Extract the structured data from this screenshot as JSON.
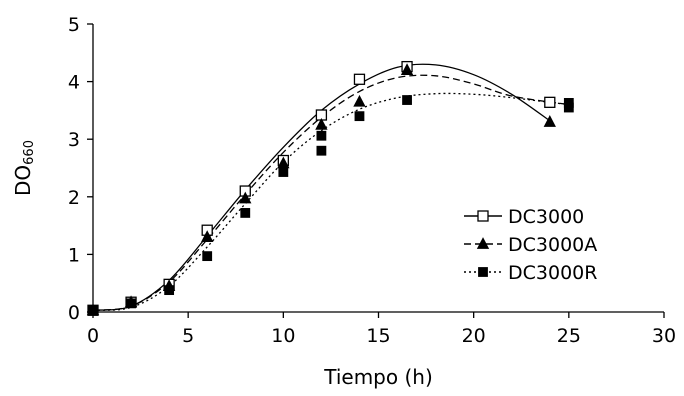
{
  "chart_data": {
    "type": "scatter",
    "xlabel": "Tiempo (h)",
    "ylabel": {
      "main": "DO",
      "sub": "660"
    },
    "xlim": [
      0,
      30
    ],
    "ylim": [
      0,
      5
    ],
    "xticks": [
      0,
      5,
      10,
      15,
      20,
      25,
      30
    ],
    "yticks": [
      0,
      1,
      2,
      3,
      4,
      5
    ],
    "grid": false,
    "legend_position": "center-right",
    "series": [
      {
        "name": "DC3000",
        "marker": "open-square",
        "line": "solid",
        "color": "#000000",
        "points": [
          {
            "x": 0,
            "y": 0.03
          },
          {
            "x": 2,
            "y": 0.17
          },
          {
            "x": 4,
            "y": 0.48
          },
          {
            "x": 6,
            "y": 1.42
          },
          {
            "x": 8,
            "y": 2.1
          },
          {
            "x": 10,
            "y": 2.63
          },
          {
            "x": 12,
            "y": 3.42
          },
          {
            "x": 14,
            "y": 4.04
          },
          {
            "x": 16.5,
            "y": 4.26
          },
          {
            "x": 24,
            "y": 3.64
          }
        ],
        "trend": [
          {
            "x": 0,
            "y": 0.03
          },
          {
            "x": 2,
            "y": 0.1
          },
          {
            "x": 4,
            "y": 0.55
          },
          {
            "x": 6,
            "y": 1.32
          },
          {
            "x": 8,
            "y": 2.12
          },
          {
            "x": 10,
            "y": 2.86
          },
          {
            "x": 12,
            "y": 3.5
          },
          {
            "x": 14,
            "y": 3.96
          },
          {
            "x": 16,
            "y": 4.25
          },
          {
            "x": 18,
            "y": 4.29
          },
          {
            "x": 20,
            "y": 4.12
          },
          {
            "x": 22,
            "y": 3.78
          },
          {
            "x": 24,
            "y": 3.32
          }
        ]
      },
      {
        "name": "DC3000A",
        "marker": "filled-triangle",
        "line": "dashed",
        "color": "#000000",
        "points": [
          {
            "x": 0,
            "y": 0.03
          },
          {
            "x": 2,
            "y": 0.17
          },
          {
            "x": 4,
            "y": 0.45
          },
          {
            "x": 6,
            "y": 1.3
          },
          {
            "x": 8,
            "y": 1.97
          },
          {
            "x": 10,
            "y": 2.58
          },
          {
            "x": 12,
            "y": 3.25
          },
          {
            "x": 14,
            "y": 3.65
          },
          {
            "x": 16.5,
            "y": 4.2
          },
          {
            "x": 24,
            "y": 3.3
          }
        ],
        "trend": [
          {
            "x": 0,
            "y": 0.03
          },
          {
            "x": 2,
            "y": 0.1
          },
          {
            "x": 4,
            "y": 0.52
          },
          {
            "x": 6,
            "y": 1.26
          },
          {
            "x": 8,
            "y": 2.04
          },
          {
            "x": 10,
            "y": 2.77
          },
          {
            "x": 12,
            "y": 3.38
          },
          {
            "x": 14,
            "y": 3.83
          },
          {
            "x": 16,
            "y": 4.07
          },
          {
            "x": 18,
            "y": 4.1
          },
          {
            "x": 20,
            "y": 3.96
          },
          {
            "x": 22,
            "y": 3.75
          },
          {
            "x": 25,
            "y": 3.6
          }
        ]
      },
      {
        "name": "DC3000R",
        "marker": "filled-square",
        "line": "dotted",
        "color": "#000000",
        "points": [
          {
            "x": 0,
            "y": 0.03
          },
          {
            "x": 2,
            "y": 0.15
          },
          {
            "x": 4,
            "y": 0.38
          },
          {
            "x": 6,
            "y": 0.97
          },
          {
            "x": 8,
            "y": 1.72
          },
          {
            "x": 10,
            "y": 2.43
          },
          {
            "x": 12,
            "y": 2.8
          },
          {
            "x": 12,
            "y": 3.06
          },
          {
            "x": 14,
            "y": 3.4
          },
          {
            "x": 16.5,
            "y": 3.68
          },
          {
            "x": 25,
            "y": 3.55
          },
          {
            "x": 25,
            "y": 3.63
          }
        ],
        "trend": [
          {
            "x": 0,
            "y": 0.03
          },
          {
            "x": 2,
            "y": 0.08
          },
          {
            "x": 4,
            "y": 0.45
          },
          {
            "x": 6,
            "y": 1.13
          },
          {
            "x": 8,
            "y": 1.88
          },
          {
            "x": 10,
            "y": 2.6
          },
          {
            "x": 12,
            "y": 3.15
          },
          {
            "x": 14,
            "y": 3.52
          },
          {
            "x": 16,
            "y": 3.72
          },
          {
            "x": 18,
            "y": 3.79
          },
          {
            "x": 20,
            "y": 3.78
          },
          {
            "x": 22,
            "y": 3.72
          },
          {
            "x": 25,
            "y": 3.6
          }
        ]
      }
    ]
  }
}
